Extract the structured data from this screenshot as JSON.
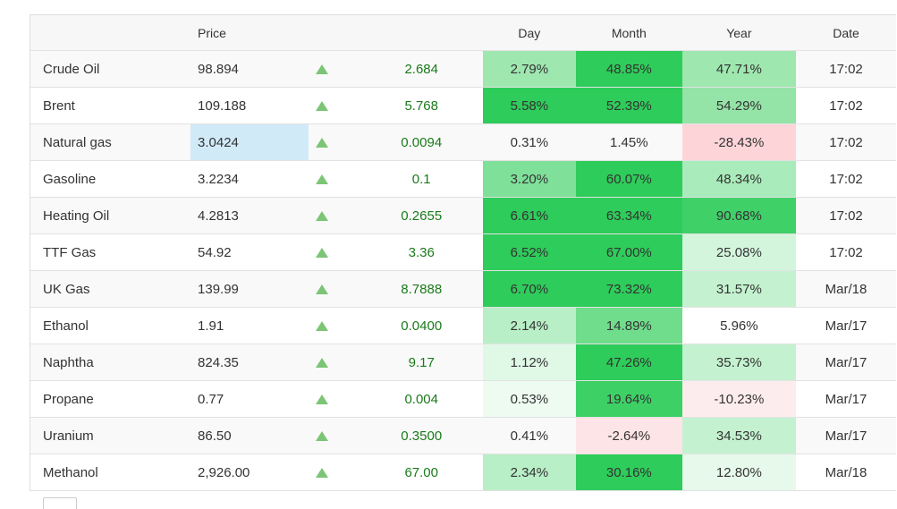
{
  "header": {
    "name": "",
    "price": "Price",
    "arrow": "",
    "change": "",
    "day": "Day",
    "month": "Month",
    "year": "Year",
    "date": "Date"
  },
  "rows": [
    {
      "name": "Crude Oil",
      "price": "98.894",
      "change": "2.684",
      "day": "2.79%",
      "month": "48.85%",
      "year": "47.71%",
      "date": "17:02"
    },
    {
      "name": "Brent",
      "price": "109.188",
      "change": "5.768",
      "day": "5.58%",
      "month": "52.39%",
      "year": "54.29%",
      "date": "17:02"
    },
    {
      "name": "Natural gas",
      "price": "3.0424",
      "change": "0.0094",
      "day": "0.31%",
      "month": "1.45%",
      "year": "-28.43%",
      "date": "17:02"
    },
    {
      "name": "Gasoline",
      "price": "3.2234",
      "change": "0.1",
      "day": "3.20%",
      "month": "60.07%",
      "year": "48.34%",
      "date": "17:02"
    },
    {
      "name": "Heating Oil",
      "price": "4.2813",
      "change": "0.2655",
      "day": "6.61%",
      "month": "63.34%",
      "year": "90.68%",
      "date": "17:02"
    },
    {
      "name": "TTF Gas",
      "price": "54.92",
      "change": "3.36",
      "day": "6.52%",
      "month": "67.00%",
      "year": "25.08%",
      "date": "17:02"
    },
    {
      "name": "UK Gas",
      "price": "139.99",
      "change": "8.7888",
      "day": "6.70%",
      "month": "73.32%",
      "year": "31.57%",
      "date": "Mar/18"
    },
    {
      "name": "Ethanol",
      "price": "1.91",
      "change": "0.0400",
      "day": "2.14%",
      "month": "14.89%",
      "year": "5.96%",
      "date": "Mar/17"
    },
    {
      "name": "Naphtha",
      "price": "824.35",
      "change": "9.17",
      "day": "1.12%",
      "month": "47.26%",
      "year": "35.73%",
      "date": "Mar/17"
    },
    {
      "name": "Propane",
      "price": "0.77",
      "change": "0.004",
      "day": "0.53%",
      "month": "19.64%",
      "year": "-10.23%",
      "date": "Mar/17"
    },
    {
      "name": "Uranium",
      "price": "86.50",
      "change": "0.3500",
      "day": "0.41%",
      "month": "-2.64%",
      "year": "34.53%",
      "date": "Mar/17"
    },
    {
      "name": "Methanol",
      "price": "2,926.00",
      "change": "67.00",
      "day": "2.34%",
      "month": "30.16%",
      "year": "12.80%",
      "date": "Mar/18"
    }
  ],
  "colors": {
    "arrow_up": "#7cc576",
    "change_text": "#1a7a1a",
    "highlight_price": "#d0eaf8",
    "heat": {
      "day": [
        "#9ee7af",
        "#2ecc5a",
        "transparent",
        "#7fe09a",
        "#2ecc5a",
        "#2ecc5a",
        "#2ecc5a",
        "#b8efc6",
        "#e0f8e6",
        "#eefbf1",
        "transparent",
        "#b8efc6"
      ],
      "month": [
        "#2ecc5a",
        "#2ecc5a",
        "transparent",
        "#2ecc5a",
        "#2ecc5a",
        "#2ecc5a",
        "#2ecc5a",
        "#6fdd8c",
        "#2ecc5a",
        "#3dd165",
        "#fde4e6",
        "#2ecc5a"
      ],
      "year": [
        "#9ee7af",
        "#94e4a7",
        "#fdd5d8",
        "#a9ebba",
        "#40d068",
        "#d3f5dc",
        "#c4f2d0",
        "transparent",
        "#c4f2d0",
        "#fdecee",
        "#c4f2d0",
        "#e6f9ea"
      ]
    }
  }
}
